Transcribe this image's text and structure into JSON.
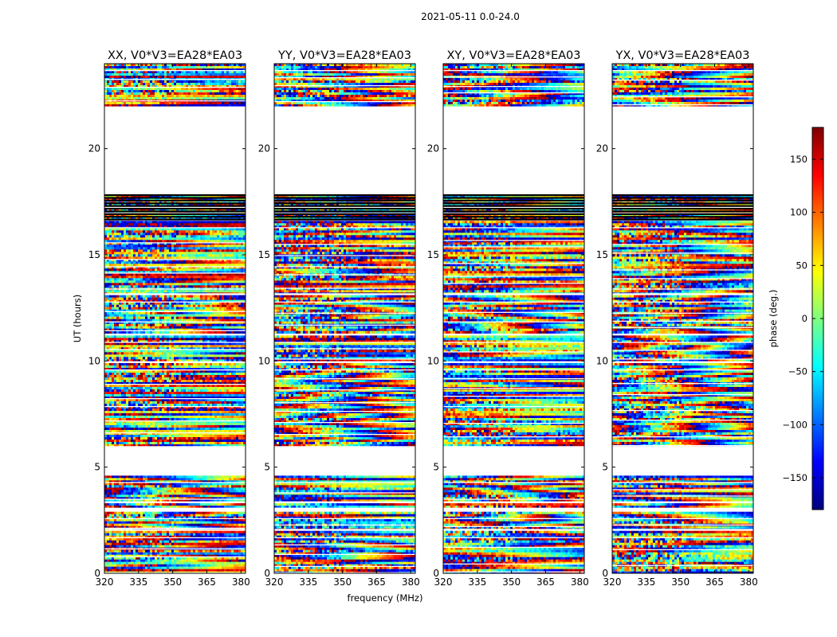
{
  "figure": {
    "suptitle": "2021-05-11 0.0-24.0",
    "xlabel": "frequency (MHz)",
    "ylabel": "UT (hours)"
  },
  "colorbar": {
    "label": "phase (deg.)",
    "range": [
      -180,
      180
    ],
    "ticks": [
      "150",
      "100",
      "50",
      "0",
      "−50",
      "−100",
      "−150"
    ],
    "tick_values": [
      150,
      100,
      50,
      0,
      -50,
      -100,
      -150
    ],
    "colormap": "jet",
    "stops": [
      "#00007f",
      "#0000ff",
      "#007fff",
      "#00ffff",
      "#7fff7f",
      "#ffff00",
      "#ff7f00",
      "#ff0000",
      "#7f0000"
    ]
  },
  "chart_data": {
    "type": "heatmap",
    "value": "visibility phase (deg.)",
    "xlim": [
      320,
      382
    ],
    "ylim": [
      0,
      24
    ],
    "x_ticks": [
      320,
      335,
      350,
      365,
      380
    ],
    "y_ticks": [
      0,
      5,
      10,
      15,
      20
    ],
    "panels": [
      {
        "title": "XX, V0*V3=EA28*EA03",
        "pol": "XX"
      },
      {
        "title": "YY, V0*V3=EA28*EA03",
        "pol": "YY"
      },
      {
        "title": "XY, V0*V3=EA28*EA03",
        "pol": "XY"
      },
      {
        "title": "YX, V0*V3=EA28*EA03",
        "pol": "YX"
      }
    ],
    "data_blocks_ut": [
      [
        0.0,
        2.0
      ],
      [
        2.1,
        2.9
      ],
      [
        3.1,
        3.3
      ],
      [
        3.4,
        4.6
      ],
      [
        6.0,
        9.9
      ],
      [
        10.0,
        11.2
      ],
      [
        11.3,
        13.1
      ],
      [
        13.2,
        16.6
      ],
      [
        16.7,
        16.9
      ],
      [
        17.0,
        17.2
      ],
      [
        17.3,
        17.5
      ],
      [
        17.6,
        17.8
      ],
      [
        22.0,
        24.0
      ]
    ],
    "gaps_ut": [
      [
        4.6,
        6.0
      ],
      [
        17.8,
        22.0
      ]
    ]
  }
}
